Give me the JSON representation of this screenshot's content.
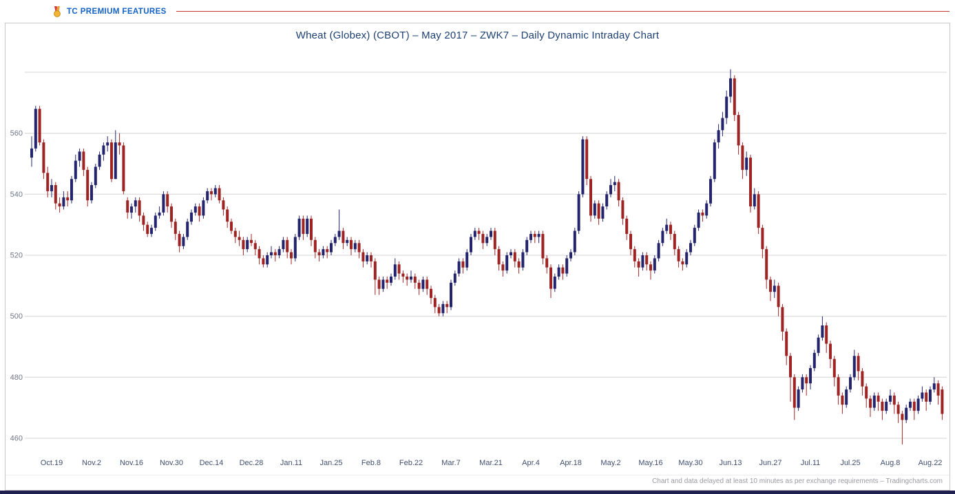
{
  "topbar": {
    "premium_label": "TC PREMIUM FEATURES"
  },
  "chart": {
    "title": "Wheat (Globex) (CBOT) – May 2017 – ZWK7 – Daily Dynamic Intraday Chart"
  },
  "footer": {
    "disclaimer": "Chart and data delayed at least 10 minutes as per exchange requirements – Tradingcharts.com"
  },
  "colors": {
    "premium_blue": "#1261c4",
    "divider_red": "#c0392b",
    "title_navy": "#1d3f72",
    "bottom_strip": "#202050"
  },
  "chart_data": {
    "type": "candlestick",
    "title": "Wheat (Globex) (CBOT) – May 2017 – ZWK7 – Daily Dynamic Intraday Chart",
    "xlabel": "",
    "ylabel": "",
    "ylim": [
      455,
      588
    ],
    "grid": true,
    "y_ticks": [
      460,
      480,
      500,
      520,
      540,
      560
    ],
    "y_gridlines": [
      460,
      480,
      500,
      520,
      540,
      560,
      580
    ],
    "x_tick_labels": [
      "Oct.19",
      "Nov.2",
      "Nov.16",
      "Nov.30",
      "Dec.14",
      "Dec.28",
      "Jan.11",
      "Jan.25",
      "Feb.8",
      "Feb.22",
      "Mar.7",
      "Mar.21",
      "Apr.4",
      "Apr.18",
      "May.2",
      "May.16",
      "May.30",
      "Jun.13",
      "Jun.27",
      "Jul.11",
      "Jul.25",
      "Aug.8",
      "Aug.22"
    ],
    "first_tick_candle_index": 5,
    "ticks_every_n_candles": 10,
    "ohlc_format": [
      "open",
      "high",
      "low",
      "close"
    ],
    "up_color": "#23236e",
    "down_color": "#9e2424",
    "grid_color": "#d4d4d4",
    "xtick_color": "#3f4e6e",
    "ytick_color": "#6e7687",
    "candles": [
      [
        552,
        559,
        549,
        555
      ],
      [
        555,
        569,
        554,
        568
      ],
      [
        568,
        569,
        556,
        557
      ],
      [
        557,
        558,
        545,
        547
      ],
      [
        547,
        549,
        539,
        541
      ],
      [
        541,
        545,
        539,
        543
      ],
      [
        543,
        544,
        535,
        537
      ],
      [
        537,
        539,
        534,
        536
      ],
      [
        536,
        541,
        535,
        539
      ],
      [
        539,
        541,
        536,
        538
      ],
      [
        538,
        546,
        537,
        545
      ],
      [
        545,
        553,
        544,
        551
      ],
      [
        551,
        555,
        549,
        554
      ],
      [
        554,
        555,
        546,
        548
      ],
      [
        548,
        549,
        536,
        538
      ],
      [
        538,
        544,
        537,
        543
      ],
      [
        543,
        550,
        542,
        549
      ],
      [
        549,
        554,
        548,
        553
      ],
      [
        553,
        557,
        551,
        556
      ],
      [
        556,
        559,
        554,
        557
      ],
      [
        557,
        558,
        544,
        545
      ],
      [
        545,
        561,
        545,
        557
      ],
      [
        557,
        560,
        553,
        556
      ],
      [
        556,
        557,
        540,
        541
      ],
      [
        538,
        539,
        532,
        534
      ],
      [
        534,
        537,
        532,
        536
      ],
      [
        536,
        539,
        534,
        538
      ],
      [
        538,
        539,
        531,
        533
      ],
      [
        533,
        534,
        528,
        530
      ],
      [
        530,
        531,
        526,
        527
      ],
      [
        527,
        530,
        526,
        529
      ],
      [
        529,
        534,
        528,
        533
      ],
      [
        533,
        536,
        532,
        534
      ],
      [
        534,
        541,
        533,
        540
      ],
      [
        540,
        541,
        534,
        536
      ],
      [
        536,
        537,
        529,
        531
      ],
      [
        531,
        532,
        525,
        527
      ],
      [
        527,
        528,
        521,
        523
      ],
      [
        523,
        527,
        522,
        526
      ],
      [
        526,
        532,
        525,
        531
      ],
      [
        531,
        535,
        530,
        534
      ],
      [
        534,
        537,
        533,
        536
      ],
      [
        536,
        537,
        531,
        533
      ],
      [
        533,
        539,
        532,
        538
      ],
      [
        538,
        542,
        537,
        541
      ],
      [
        541,
        542,
        538,
        540
      ],
      [
        540,
        543,
        539,
        542
      ],
      [
        542,
        543,
        537,
        538
      ],
      [
        538,
        539,
        533,
        535
      ],
      [
        535,
        536,
        529,
        531
      ],
      [
        531,
        532,
        527,
        528
      ],
      [
        528,
        529,
        524,
        526
      ],
      [
        526,
        528,
        523,
        525
      ],
      [
        525,
        526,
        520,
        522
      ],
      [
        522,
        526,
        521,
        525
      ],
      [
        525,
        527,
        523,
        524
      ],
      [
        524,
        525,
        520,
        522
      ],
      [
        522,
        523,
        517,
        519
      ],
      [
        519,
        520,
        516,
        517
      ],
      [
        517,
        521,
        516,
        520
      ],
      [
        520,
        523,
        519,
        521
      ],
      [
        521,
        522,
        518,
        520
      ],
      [
        520,
        523,
        519,
        522
      ],
      [
        522,
        526,
        521,
        525
      ],
      [
        525,
        526,
        519,
        521
      ],
      [
        521,
        522,
        517,
        519
      ],
      [
        519,
        527,
        518,
        526
      ],
      [
        526,
        533,
        525,
        532
      ],
      [
        532,
        533,
        525,
        527
      ],
      [
        527,
        533,
        526,
        532
      ],
      [
        532,
        533,
        523,
        525
      ],
      [
        525,
        526,
        519,
        521
      ],
      [
        521,
        522,
        518,
        520
      ],
      [
        520,
        523,
        519,
        522
      ],
      [
        522,
        523,
        519,
        521
      ],
      [
        521,
        525,
        520,
        524
      ],
      [
        524,
        527,
        523,
        526
      ],
      [
        526,
        535,
        525,
        528
      ],
      [
        528,
        529,
        522,
        524
      ],
      [
        524,
        526,
        523,
        525
      ],
      [
        525,
        526,
        520,
        522
      ],
      [
        522,
        525,
        521,
        524
      ],
      [
        524,
        525,
        519,
        521
      ],
      [
        521,
        522,
        516,
        518
      ],
      [
        518,
        521,
        517,
        520
      ],
      [
        520,
        521,
        516,
        518
      ],
      [
        518,
        519,
        507,
        512
      ],
      [
        512,
        513,
        507,
        509
      ],
      [
        509,
        513,
        508,
        512
      ],
      [
        512,
        513,
        509,
        511
      ],
      [
        511,
        514,
        510,
        513
      ],
      [
        513,
        519,
        512,
        517
      ],
      [
        517,
        518,
        512,
        514
      ],
      [
        514,
        515,
        511,
        513
      ],
      [
        513,
        514,
        510,
        512
      ],
      [
        512,
        515,
        511,
        513
      ],
      [
        513,
        514,
        509,
        511
      ],
      [
        511,
        512,
        507,
        509
      ],
      [
        509,
        513,
        508,
        512
      ],
      [
        512,
        513,
        507,
        509
      ],
      [
        509,
        510,
        504,
        506
      ],
      [
        506,
        507,
        501,
        503
      ],
      [
        503,
        504,
        500,
        501
      ],
      [
        501,
        505,
        500,
        504
      ],
      [
        504,
        505,
        501,
        503
      ],
      [
        503,
        512,
        502,
        511
      ],
      [
        511,
        515,
        510,
        514
      ],
      [
        514,
        519,
        513,
        518
      ],
      [
        518,
        519,
        514,
        516
      ],
      [
        516,
        522,
        515,
        521
      ],
      [
        521,
        527,
        520,
        526
      ],
      [
        526,
        529,
        525,
        528
      ],
      [
        528,
        529,
        525,
        527
      ],
      [
        527,
        528,
        522,
        524
      ],
      [
        524,
        527,
        523,
        526
      ],
      [
        526,
        529,
        525,
        528
      ],
      [
        528,
        529,
        520,
        522
      ],
      [
        522,
        523,
        515,
        517
      ],
      [
        517,
        518,
        513,
        515
      ],
      [
        515,
        521,
        514,
        520
      ],
      [
        520,
        522,
        519,
        521
      ],
      [
        521,
        522,
        516,
        518
      ],
      [
        518,
        519,
        514,
        516
      ],
      [
        516,
        522,
        515,
        521
      ],
      [
        521,
        526,
        520,
        525
      ],
      [
        525,
        528,
        524,
        527
      ],
      [
        527,
        528,
        524,
        526
      ],
      [
        526,
        528,
        524,
        527
      ],
      [
        527,
        528,
        517,
        519
      ],
      [
        519,
        520,
        514,
        516
      ],
      [
        516,
        517,
        506,
        509
      ],
      [
        509,
        514,
        508,
        513
      ],
      [
        513,
        517,
        512,
        516
      ],
      [
        516,
        517,
        512,
        514
      ],
      [
        514,
        520,
        513,
        519
      ],
      [
        519,
        522,
        518,
        521
      ],
      [
        521,
        529,
        520,
        528
      ],
      [
        528,
        541,
        527,
        540
      ],
      [
        540,
        559,
        539,
        558
      ],
      [
        558,
        559,
        543,
        545
      ],
      [
        545,
        546,
        531,
        533
      ],
      [
        533,
        538,
        532,
        537
      ],
      [
        537,
        538,
        530,
        532
      ],
      [
        532,
        537,
        531,
        536
      ],
      [
        536,
        541,
        535,
        540
      ],
      [
        540,
        545,
        539,
        543
      ],
      [
        543,
        546,
        541,
        544
      ],
      [
        544,
        545,
        536,
        538
      ],
      [
        538,
        539,
        530,
        532
      ],
      [
        532,
        533,
        525,
        527
      ],
      [
        527,
        528,
        520,
        522
      ],
      [
        522,
        523,
        516,
        518
      ],
      [
        518,
        519,
        513,
        516
      ],
      [
        516,
        521,
        515,
        520
      ],
      [
        520,
        521,
        515,
        517
      ],
      [
        517,
        518,
        512,
        515
      ],
      [
        515,
        520,
        514,
        519
      ],
      [
        519,
        525,
        518,
        524
      ],
      [
        524,
        529,
        523,
        528
      ],
      [
        528,
        532,
        527,
        530
      ],
      [
        530,
        531,
        525,
        527
      ],
      [
        527,
        528,
        520,
        522
      ],
      [
        522,
        523,
        516,
        518
      ],
      [
        518,
        519,
        515,
        517
      ],
      [
        517,
        522,
        516,
        521
      ],
      [
        521,
        525,
        520,
        524
      ],
      [
        524,
        530,
        523,
        529
      ],
      [
        529,
        535,
        528,
        534
      ],
      [
        534,
        535,
        531,
        533
      ],
      [
        533,
        538,
        532,
        537
      ],
      [
        537,
        546,
        536,
        545
      ],
      [
        545,
        558,
        544,
        557
      ],
      [
        557,
        563,
        555,
        561
      ],
      [
        561,
        567,
        559,
        565
      ],
      [
        565,
        574,
        563,
        572
      ],
      [
        572,
        581,
        570,
        578
      ],
      [
        578,
        579,
        564,
        566
      ],
      [
        566,
        567,
        553,
        556
      ],
      [
        556,
        557,
        545,
        548
      ],
      [
        548,
        554,
        546,
        552
      ],
      [
        552,
        553,
        534,
        536
      ],
      [
        536,
        542,
        535,
        540
      ],
      [
        540,
        541,
        527,
        529
      ],
      [
        529,
        530,
        519,
        522
      ],
      [
        522,
        523,
        509,
        512
      ],
      [
        512,
        513,
        505,
        508
      ],
      [
        508,
        512,
        506,
        510
      ],
      [
        510,
        511,
        500,
        503
      ],
      [
        503,
        504,
        492,
        495
      ],
      [
        495,
        496,
        484,
        487
      ],
      [
        487,
        488,
        472,
        480
      ],
      [
        480,
        481,
        466,
        470
      ],
      [
        470,
        477,
        469,
        476
      ],
      [
        476,
        481,
        475,
        480
      ],
      [
        480,
        481,
        474,
        478
      ],
      [
        478,
        484,
        476,
        483
      ],
      [
        483,
        489,
        482,
        488
      ],
      [
        488,
        494,
        487,
        493
      ],
      [
        493,
        500,
        492,
        497
      ],
      [
        497,
        498,
        488,
        491
      ],
      [
        491,
        492,
        483,
        486
      ],
      [
        486,
        487,
        477,
        480
      ],
      [
        480,
        481,
        471,
        474
      ],
      [
        474,
        475,
        468,
        471
      ],
      [
        471,
        477,
        470,
        476
      ],
      [
        476,
        481,
        475,
        480
      ],
      [
        480,
        489,
        479,
        487
      ],
      [
        487,
        488,
        479,
        482
      ],
      [
        482,
        483,
        474,
        477
      ],
      [
        477,
        478,
        470,
        473
      ],
      [
        473,
        474,
        467,
        470
      ],
      [
        470,
        475,
        469,
        474
      ],
      [
        474,
        475,
        469,
        472
      ],
      [
        472,
        473,
        466,
        469
      ],
      [
        469,
        473,
        468,
        472
      ],
      [
        472,
        476,
        471,
        474
      ],
      [
        474,
        475,
        468,
        471
      ],
      [
        471,
        472,
        465,
        468
      ],
      [
        468,
        469,
        458,
        466
      ],
      [
        466,
        471,
        465,
        470
      ],
      [
        470,
        473,
        469,
        472
      ],
      [
        472,
        473,
        466,
        469
      ],
      [
        469,
        474,
        468,
        473
      ],
      [
        473,
        477,
        472,
        475
      ],
      [
        475,
        476,
        469,
        472
      ],
      [
        472,
        477,
        471,
        476
      ],
      [
        476,
        480,
        475,
        478
      ],
      [
        478,
        479,
        471,
        474
      ],
      [
        476,
        477,
        466,
        468
      ]
    ]
  }
}
